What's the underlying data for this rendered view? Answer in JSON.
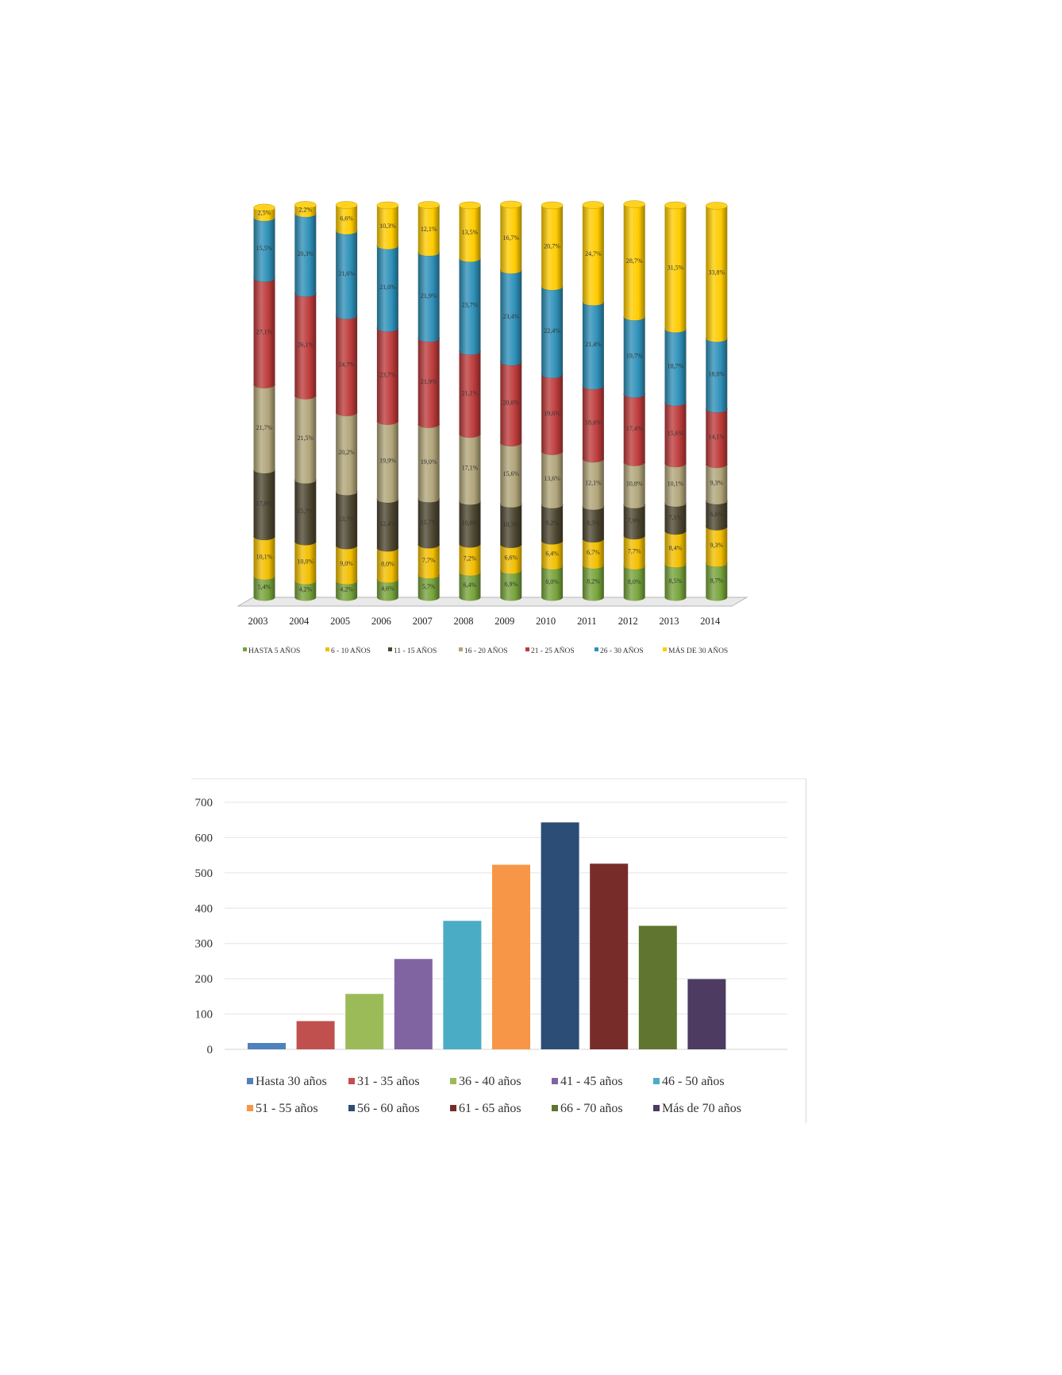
{
  "chart_data": [
    {
      "type": "bar",
      "stacked": true,
      "percent": true,
      "style": "3d-cylinders",
      "categories": [
        "2003",
        "2004",
        "2005",
        "2006",
        "2007",
        "2008",
        "2009",
        "2010",
        "2011",
        "2012",
        "2013",
        "2014"
      ],
      "series": [
        {
          "name": "HASTA 5 AÑOS",
          "color": "#77a33c",
          "values": [
            5.4,
            4.2,
            4.2,
            4.6,
            5.7,
            6.4,
            6.9,
            8.0,
            8.2,
            8.0,
            8.5,
            8.7
          ],
          "labels": [
            "5,4%",
            "4,2%",
            "4,2%",
            "4,6%",
            "5,7%",
            "6,4%",
            "6,9%",
            "8,0%",
            "8,2%",
            "8,0%",
            "8,5%",
            "8,7%"
          ]
        },
        {
          "name": "6 - 10 AÑOS",
          "color": "#f2be00",
          "values": [
            10.1,
            10.0,
            9.0,
            8.0,
            7.7,
            7.2,
            6.6,
            6.4,
            6.7,
            7.7,
            8.4,
            9.3
          ],
          "labels": [
            "10,1%",
            "10,0%",
            "9,0%",
            "8,0%",
            "7,7%",
            "7,2%",
            "6,6%",
            "6,4%",
            "6,7%",
            "7,7%",
            "8,4%",
            "9,3%"
          ]
        },
        {
          "name": "11 - 15 AÑOS",
          "color": "#4d4630",
          "values": [
            17.0,
            15.7,
            13.7,
            12.4,
            11.7,
            10.9,
            10.3,
            9.2,
            8.3,
            7.9,
            7.1,
            6.6
          ],
          "labels": [
            "17,0%",
            "15,7%",
            "13,7%",
            "12,4%",
            "11,7%",
            "10,9%",
            "10,3%",
            "9,2%",
            "8,3%",
            "7,9%",
            "7,1%",
            "6,6%"
          ]
        },
        {
          "name": "16 - 20 AÑOS",
          "color": "#b1a57a",
          "values": [
            21.7,
            21.5,
            20.2,
            19.9,
            19.0,
            17.1,
            15.6,
            13.6,
            12.1,
            10.8,
            10.1,
            9.3
          ],
          "labels": [
            "21,7%",
            "21,5%",
            "20,2%",
            "19,9%",
            "19,0%",
            "17,1%",
            "15,6%",
            "13,6%",
            "12,1%",
            "10,8%",
            "10,1%",
            "9,3%"
          ]
        },
        {
          "name": "21 - 25 AÑOS",
          "color": "#bd3b3b",
          "values": [
            27.1,
            26.1,
            24.7,
            23.7,
            21.9,
            21.1,
            20.6,
            19.6,
            18.6,
            17.4,
            15.6,
            14.1
          ],
          "labels": [
            "27,1%",
            "26,1%",
            "24,7%",
            "23,7%",
            "21,9%",
            "21,1%",
            "20,6%",
            "19,6%",
            "18,6%",
            "17,4%",
            "15,6%",
            "14,1%"
          ]
        },
        {
          "name": "26 - 30 AÑOS",
          "color": "#2e90b8",
          "values": [
            15.5,
            20.3,
            21.6,
            21.0,
            21.9,
            23.7,
            23.4,
            22.4,
            21.4,
            19.7,
            18.7,
            18.0
          ],
          "labels": [
            "15,5%",
            "20,3%",
            "21,6%",
            "21,0%",
            "21,9%",
            "23,7%",
            "23,4%",
            "22,4%",
            "21,4%",
            "19,7%",
            "18,7%",
            "18,0%"
          ]
        },
        {
          "name": "MÁS DE 30 AÑOS",
          "color": "#ffcc00",
          "values": [
            2.5,
            2.2,
            6.6,
            10.3,
            12.1,
            13.5,
            16.7,
            20.7,
            24.7,
            28.7,
            31.5,
            33.8
          ],
          "labels": [
            "2,5%",
            "2,2%",
            "6,6%",
            "10,3%",
            "12,1%",
            "13,5%",
            "16,7%",
            "20,7%",
            "24,7%",
            "28,7%",
            "31,5%",
            "33,8%"
          ]
        }
      ],
      "legend_position": "bottom",
      "grid": false
    },
    {
      "type": "bar",
      "categories": [
        "Hasta 30 años",
        "31 - 35 años",
        "36 - 40 años",
        "41 - 45 años",
        "46 - 50 años",
        "51 - 55 años",
        "56 - 60 años",
        "61 - 65 años",
        "66 - 70 años",
        "Más de 70 años"
      ],
      "values": [
        18,
        80,
        157,
        256,
        364,
        523,
        643,
        526,
        350,
        199
      ],
      "colors": [
        "#4f81bd",
        "#c0504d",
        "#9bbb59",
        "#8064a2",
        "#4bacc6",
        "#f79646",
        "#2c4d75",
        "#772c2a",
        "#5f7530",
        "#4d3b62"
      ],
      "yticks": [
        "700",
        "600",
        "500",
        "400",
        "300",
        "200",
        "100",
        "0"
      ],
      "ylim": [
        0,
        700
      ],
      "grid": true,
      "legend_position": "bottom"
    }
  ]
}
